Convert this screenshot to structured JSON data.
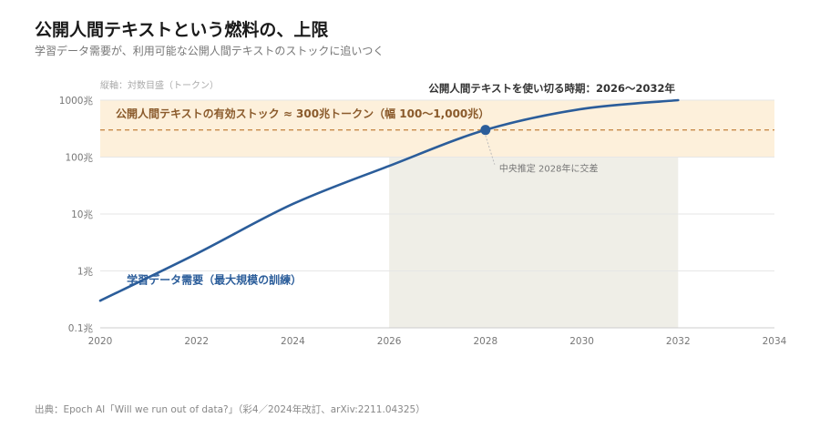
{
  "header": {
    "title": "公開人間テキストという燃料の、上限",
    "subtitle": "学習データ需要が、利用可能な公開人間テキストのストックに追いつく"
  },
  "source": "出典：Epoch AI「Will we run out of data?」（彩4／2024年改訂、arXiv:2211.04325）",
  "chart_data": {
    "type": "line",
    "yscale": "log",
    "ylabel": "縦軸：対数目盛（トークン）",
    "xlim": [
      2020,
      2034
    ],
    "ylim": [
      0.1,
      1000
    ],
    "x_ticks": [
      2020,
      2022,
      2024,
      2026,
      2028,
      2030,
      2032,
      2034
    ],
    "y_ticks": [
      {
        "value": 0.1,
        "label": "0.1兆"
      },
      {
        "value": 1,
        "label": "1兆"
      },
      {
        "value": 10,
        "label": "10兆"
      },
      {
        "value": 100,
        "label": "100兆"
      },
      {
        "value": 1000,
        "label": "1000兆"
      }
    ],
    "series": [
      {
        "name": "学習データ需要（最大規模の訓練）",
        "color": "#2b5d9a",
        "x": [
          2020,
          2022,
          2024,
          2026,
          2028,
          2030,
          2032
        ],
        "values": [
          0.3,
          2,
          15,
          70,
          300,
          700,
          1000
        ]
      }
    ],
    "stock_band": {
      "label": "公開人間テキストの有効ストック ≈ 300兆トークン（幅 100〜1,000兆）",
      "center": 300,
      "low": 100,
      "high": 1000,
      "color": "#fdf0db",
      "line_color": "#c88a4a"
    },
    "exhaustion_period": {
      "label": "公開人間テキストを使い切る時期：2026〜2032年",
      "start": 2026,
      "end": 2032,
      "color": "#efeee7"
    },
    "intersection": {
      "x": 2028,
      "y": 300,
      "label": "中央推定 2028年に交差"
    },
    "grid": true
  }
}
